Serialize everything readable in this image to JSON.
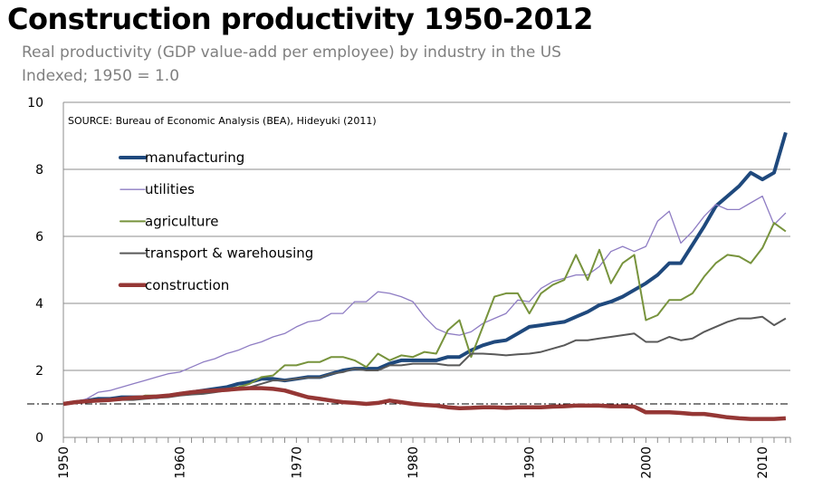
{
  "title": "Construction productivity 1950-2012",
  "subtitle": "Real productivity (GDP value-add per employee) by industry in the US",
  "subtitle2": "Indexed; 1950 = 1.0",
  "chart_data": {
    "type": "line",
    "title": "Construction productivity 1950-2012",
    "annotation": "SOURCE: Bureau of Economic Analysis (BEA), Hideyuki (2011)",
    "xlabel": "",
    "ylabel": "",
    "xlim": [
      1950,
      2012
    ],
    "ylim": [
      0,
      10
    ],
    "yticks": [
      0,
      2,
      4,
      6,
      8,
      10
    ],
    "xticks": [
      1950,
      1960,
      1970,
      1980,
      1990,
      2000,
      2010
    ],
    "grid": "horizontal",
    "reference_line": 1.0,
    "legend": "top-left",
    "x": [
      1950,
      1951,
      1952,
      1953,
      1954,
      1955,
      1956,
      1957,
      1958,
      1959,
      1960,
      1961,
      1962,
      1963,
      1964,
      1965,
      1966,
      1967,
      1968,
      1969,
      1970,
      1971,
      1972,
      1973,
      1974,
      1975,
      1976,
      1977,
      1978,
      1979,
      1980,
      1981,
      1982,
      1983,
      1984,
      1985,
      1986,
      1987,
      1988,
      1989,
      1990,
      1991,
      1992,
      1993,
      1994,
      1995,
      1996,
      1997,
      1998,
      1999,
      2000,
      2001,
      2002,
      2003,
      2004,
      2005,
      2006,
      2007,
      2008,
      2009,
      2010,
      2011,
      2012
    ],
    "series": [
      {
        "name": "manufacturing",
        "color": "#1f497d",
        "width": 4,
        "values": [
          1.0,
          1.05,
          1.1,
          1.15,
          1.15,
          1.2,
          1.2,
          1.2,
          1.2,
          1.25,
          1.3,
          1.35,
          1.4,
          1.45,
          1.5,
          1.6,
          1.65,
          1.75,
          1.75,
          1.7,
          1.75,
          1.8,
          1.8,
          1.9,
          2.0,
          2.05,
          2.05,
          2.05,
          2.2,
          2.3,
          2.3,
          2.3,
          2.3,
          2.4,
          2.4,
          2.6,
          2.75,
          2.85,
          2.9,
          3.1,
          3.3,
          3.35,
          3.4,
          3.45,
          3.6,
          3.75,
          3.95,
          4.05,
          4.2,
          4.4,
          4.6,
          4.85,
          5.2,
          5.2,
          5.75,
          6.3,
          6.9,
          7.2,
          7.5,
          7.9,
          7.7,
          7.9,
          9.1
        ]
      },
      {
        "name": "utilities",
        "color": "#8e7cc3",
        "width": 1.3,
        "values": [
          1.0,
          1.05,
          1.15,
          1.35,
          1.4,
          1.5,
          1.6,
          1.7,
          1.8,
          1.9,
          1.95,
          2.1,
          2.25,
          2.35,
          2.5,
          2.6,
          2.75,
          2.85,
          3.0,
          3.1,
          3.3,
          3.45,
          3.5,
          3.7,
          3.7,
          4.05,
          4.05,
          4.35,
          4.3,
          4.2,
          4.05,
          3.6,
          3.25,
          3.1,
          3.05,
          3.15,
          3.4,
          3.55,
          3.7,
          4.1,
          4.05,
          4.45,
          4.65,
          4.75,
          4.85,
          4.85,
          5.1,
          5.55,
          5.7,
          5.55,
          5.7,
          6.45,
          6.75,
          5.8,
          6.15,
          6.6,
          6.95,
          6.8,
          6.8,
          7.0,
          7.2,
          6.35,
          6.7
        ]
      },
      {
        "name": "agriculture",
        "color": "#77933c",
        "width": 2,
        "values": [
          1.0,
          1.05,
          1.05,
          1.1,
          1.1,
          1.15,
          1.15,
          1.25,
          1.25,
          1.25,
          1.3,
          1.35,
          1.4,
          1.4,
          1.45,
          1.5,
          1.6,
          1.8,
          1.85,
          2.15,
          2.15,
          2.25,
          2.25,
          2.4,
          2.4,
          2.3,
          2.1,
          2.5,
          2.3,
          2.45,
          2.4,
          2.55,
          2.5,
          3.2,
          3.5,
          2.4,
          3.3,
          4.2,
          4.3,
          4.3,
          3.7,
          4.3,
          4.55,
          4.7,
          5.45,
          4.7,
          5.6,
          4.6,
          5.2,
          5.45,
          3.5,
          3.65,
          4.1,
          4.1,
          4.3,
          4.8,
          5.2,
          5.45,
          5.4,
          5.2,
          5.65,
          6.4,
          6.15
        ]
      },
      {
        "name": "transport & warehousing",
        "color": "#595959",
        "width": 2,
        "values": [
          1.0,
          1.02,
          1.05,
          1.08,
          1.1,
          1.12,
          1.12,
          1.15,
          1.18,
          1.2,
          1.25,
          1.28,
          1.3,
          1.35,
          1.4,
          1.45,
          1.5,
          1.6,
          1.7,
          1.7,
          1.75,
          1.78,
          1.78,
          1.9,
          1.95,
          2.05,
          2.0,
          2.0,
          2.15,
          2.15,
          2.2,
          2.2,
          2.2,
          2.15,
          2.15,
          2.5,
          2.5,
          2.48,
          2.45,
          2.48,
          2.5,
          2.55,
          2.65,
          2.75,
          2.9,
          2.9,
          2.95,
          3.0,
          3.05,
          3.1,
          2.85,
          2.85,
          3.0,
          2.9,
          2.95,
          3.15,
          3.3,
          3.45,
          3.55,
          3.55,
          3.6,
          3.35,
          3.55
        ]
      },
      {
        "name": "construction",
        "color": "#953735",
        "width": 4.5,
        "values": [
          1.0,
          1.05,
          1.08,
          1.1,
          1.12,
          1.15,
          1.18,
          1.2,
          1.22,
          1.25,
          1.3,
          1.35,
          1.38,
          1.4,
          1.42,
          1.45,
          1.47,
          1.47,
          1.45,
          1.4,
          1.3,
          1.2,
          1.15,
          1.1,
          1.05,
          1.03,
          1.0,
          1.03,
          1.1,
          1.05,
          1.0,
          0.97,
          0.95,
          0.9,
          0.87,
          0.88,
          0.9,
          0.9,
          0.88,
          0.9,
          0.9,
          0.9,
          0.92,
          0.93,
          0.95,
          0.95,
          0.95,
          0.93,
          0.93,
          0.92,
          0.75,
          0.75,
          0.75,
          0.73,
          0.7,
          0.7,
          0.65,
          0.6,
          0.57,
          0.55,
          0.55,
          0.55,
          0.57
        ]
      }
    ]
  }
}
